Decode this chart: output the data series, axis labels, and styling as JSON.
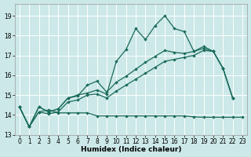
{
  "xlabel": "Humidex (Indice chaleur)",
  "bg_color": "#cce8e8",
  "grid_color": "#ffffff",
  "line_color": "#1a6b5a",
  "xlim": [
    -0.5,
    23.5
  ],
  "ylim": [
    13.0,
    19.6
  ],
  "yticks": [
    13,
    14,
    15,
    16,
    17,
    18,
    19
  ],
  "xticks": [
    0,
    1,
    2,
    3,
    4,
    5,
    6,
    7,
    8,
    9,
    10,
    11,
    12,
    13,
    14,
    15,
    16,
    17,
    18,
    19,
    20,
    21,
    22,
    23
  ],
  "s1_x": [
    0,
    1,
    2,
    3,
    4,
    5,
    6,
    7,
    8,
    9,
    10,
    11,
    12,
    13,
    14,
    15,
    16,
    17,
    18,
    19,
    20,
    21,
    22
  ],
  "s1_y": [
    14.4,
    13.4,
    14.4,
    14.15,
    14.3,
    14.85,
    15.0,
    15.1,
    15.25,
    15.05,
    16.7,
    17.3,
    18.35,
    17.8,
    18.5,
    19.0,
    18.35,
    18.2,
    17.2,
    17.45,
    17.2,
    16.35,
    14.85
  ],
  "s2_x": [
    0,
    1,
    2,
    3,
    4,
    5,
    6,
    7,
    8,
    9,
    10,
    11,
    12,
    13,
    14,
    15,
    16,
    17,
    18,
    19,
    20,
    21,
    22
  ],
  "s2_y": [
    14.4,
    13.4,
    14.4,
    14.15,
    14.3,
    14.85,
    14.95,
    15.5,
    15.7,
    15.15,
    15.65,
    15.95,
    16.3,
    16.65,
    16.95,
    17.25,
    17.15,
    17.1,
    17.2,
    17.35,
    17.2,
    16.35,
    14.85
  ],
  "s3_x": [
    0,
    1,
    2,
    3,
    4,
    5,
    6,
    7,
    8,
    9,
    10,
    11,
    12,
    13,
    14,
    15,
    16,
    17,
    18,
    19,
    20,
    21,
    22
  ],
  "s3_y": [
    14.4,
    13.4,
    14.15,
    14.05,
    14.15,
    14.65,
    14.75,
    15.0,
    15.05,
    14.85,
    15.2,
    15.5,
    15.8,
    16.1,
    16.4,
    16.7,
    16.8,
    16.9,
    17.0,
    17.25,
    17.2,
    16.35,
    14.85
  ],
  "s4_x": [
    0,
    1,
    2,
    3,
    4,
    5,
    6,
    7,
    8,
    9,
    10,
    11,
    12,
    13,
    14,
    15,
    16,
    17,
    18,
    19,
    20,
    21,
    22,
    23
  ],
  "s4_y": [
    14.4,
    13.4,
    14.15,
    14.25,
    14.1,
    14.1,
    14.1,
    14.1,
    13.95,
    13.95,
    13.95,
    13.95,
    13.95,
    13.95,
    13.95,
    13.95,
    13.95,
    13.95,
    13.9,
    13.88,
    13.88,
    13.88,
    13.88,
    13.88
  ]
}
